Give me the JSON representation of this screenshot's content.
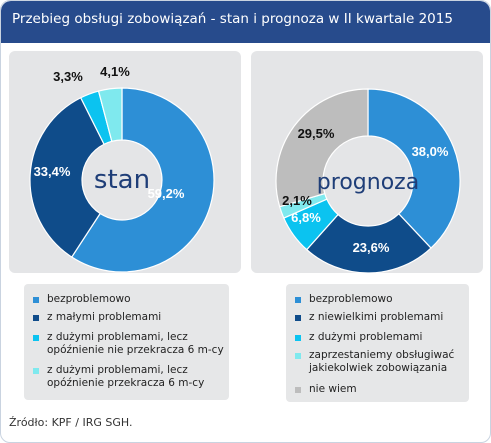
{
  "header": {
    "title": "Przebieg obsługi zobowiązań - stan i prognoza w II kwartale 2015"
  },
  "colors": {
    "blue": "#2d8fd6",
    "navy": "#0f4c8a",
    "cyan": "#0bc3f0",
    "aqua": "#7fe9ee",
    "gray": "#bdbdbd",
    "panel": "#e4e5e7",
    "header": "#274b8c"
  },
  "chart_data": [
    {
      "type": "pie",
      "center_label": "stan",
      "series": [
        {
          "name": "bezproblemowo",
          "value": 59.2,
          "label": "59,2%",
          "color": "#2d8fd6"
        },
        {
          "name": "z małymi problemami",
          "value": 33.4,
          "label": "33,4%",
          "color": "#0f4c8a"
        },
        {
          "name": "z dużymi problemami, lecz opóźnienie nie przekracza 6 m-cy",
          "value": 3.3,
          "label": "3,3%",
          "color": "#0bc3f0"
        },
        {
          "name": "z dużymi problemami, lecz opóźnienie przekracza 6 m-cy",
          "value": 4.1,
          "label": "4,1%",
          "color": "#7fe9ee"
        }
      ],
      "legend": [
        "bezproblemowo",
        "z małymi problemami",
        "z dużymi problemami, lecz\nopóźnienie nie przekracza 6 m-cy",
        "z dużymi problemami, lecz\nopóźnienie przekracza 6 m-cy"
      ]
    },
    {
      "type": "pie",
      "center_label": "prognoza",
      "series": [
        {
          "name": "bezproblemowo",
          "value": 38.0,
          "label": "38,0%",
          "color": "#2d8fd6"
        },
        {
          "name": "z niewielkimi problemami",
          "value": 23.6,
          "label": "23,6%",
          "color": "#0f4c8a"
        },
        {
          "name": "z dużymi problemami",
          "value": 6.8,
          "label": "6,8%",
          "color": "#0bc3f0"
        },
        {
          "name": "zaprzestaniemy obsługiwać jakiekolwiek zobowiązania",
          "value": 2.1,
          "label": "2,1%",
          "color": "#7fe9ee"
        },
        {
          "name": "nie wiem",
          "value": 29.5,
          "label": "29,5%",
          "color": "#bdbdbd"
        }
      ],
      "legend": [
        "bezproblemowo",
        "z niewielkimi problemami",
        "z dużymi problemami",
        "zaprzestaniemy obsługiwać\njakiekolwiek zobowiązania",
        "nie wiem"
      ]
    }
  ],
  "footer": {
    "source": "Źródło: KPF / IRG SGH."
  }
}
